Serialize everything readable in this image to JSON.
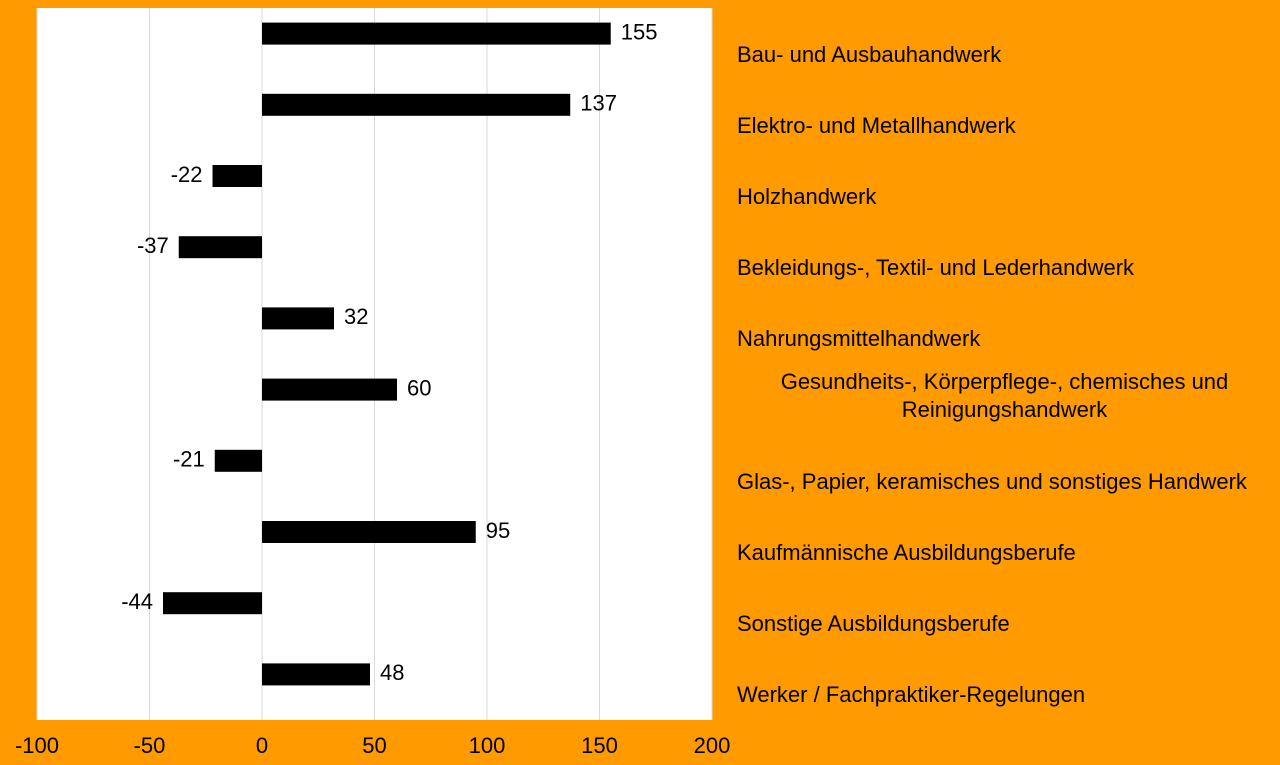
{
  "chart_data": {
    "type": "barh",
    "categories": [
      "Bau- und Ausbauhandwerk",
      "Elektro- und Metallhandwerk",
      "Holzhandwerk",
      "Bekleidungs-, Textil- und Lederhandwerk",
      "Nahrungsmittelhandwerk",
      "Gesundheits-, Körperpflege-, chemisches und Reinigungshandwerk",
      "Glas-, Papier, keramisches und sonstiges Handwerk",
      "Kaufmännische Ausbildungsberufe",
      "Sonstige Ausbildungsberufe",
      "Werker / Fachpraktiker-Regelungen"
    ],
    "values": [
      155,
      137,
      -22,
      -37,
      32,
      60,
      -21,
      95,
      -44,
      48
    ],
    "color": "#000000",
    "xlim": [
      -100,
      200
    ],
    "xticks": [
      -100,
      -50,
      0,
      50,
      100,
      150,
      200
    ],
    "grid": true
  }
}
